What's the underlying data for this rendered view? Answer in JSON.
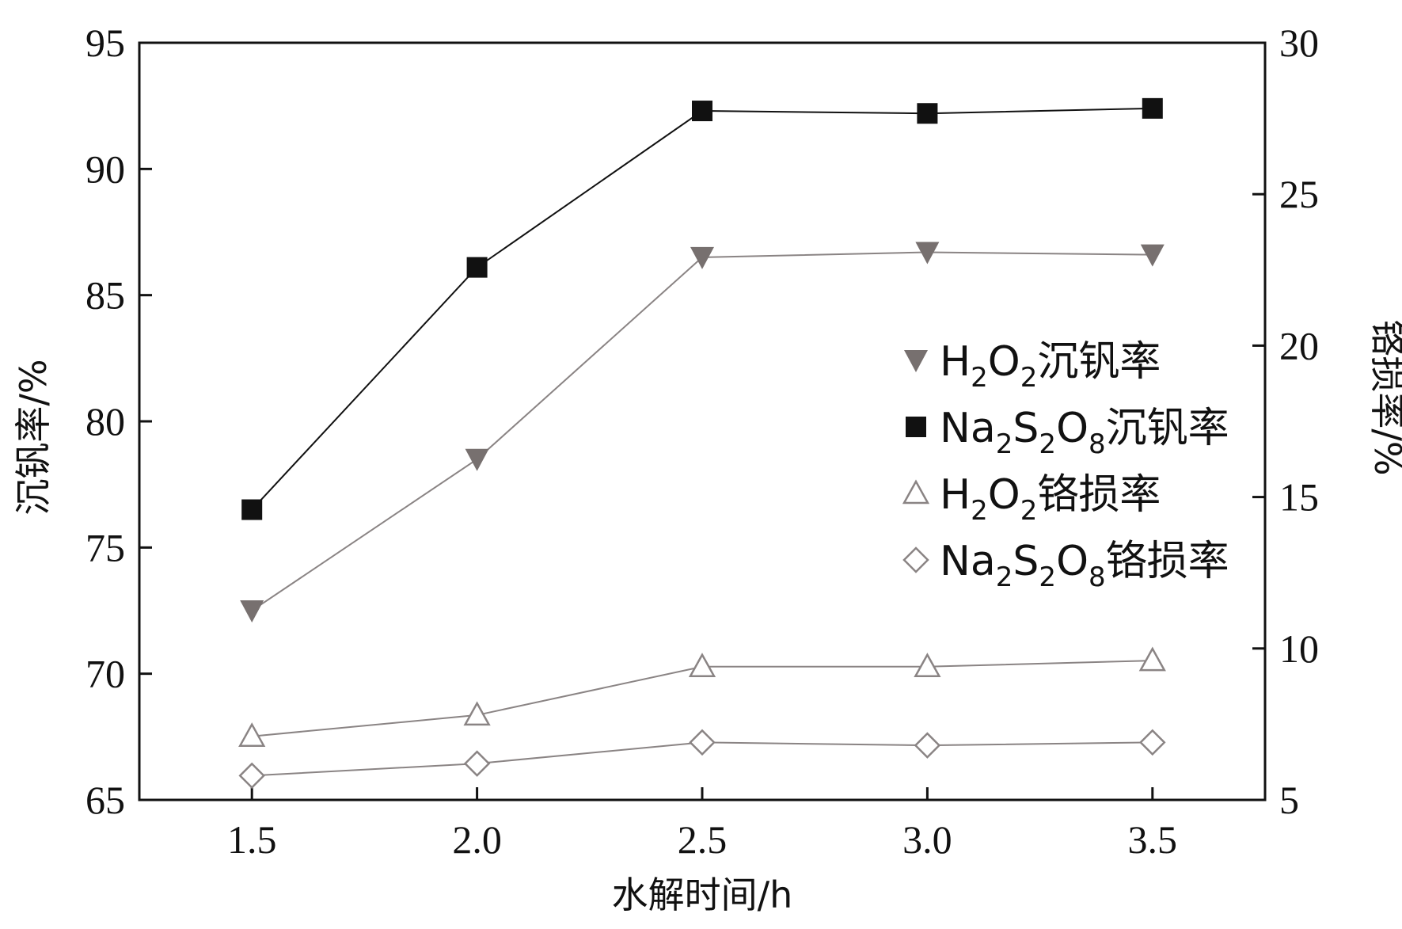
{
  "chart_data": {
    "type": "line",
    "x": [
      1.5,
      2.0,
      2.5,
      3.0,
      3.5
    ],
    "xlabel": "水解时间/h",
    "xlim": [
      1.25,
      3.75
    ],
    "xticks": [
      "1.5",
      "2.0",
      "2.5",
      "3.0",
      "3.5"
    ],
    "ylabel_left": "沉钒率/%",
    "ylim_left": [
      65,
      95
    ],
    "yticks_left": [
      "65",
      "70",
      "75",
      "80",
      "85",
      "90",
      "95"
    ],
    "ylabel_right": "铬损率/%",
    "ylim_right": [
      5,
      30
    ],
    "yticks_right": [
      "5",
      "10",
      "15",
      "20",
      "25",
      "30"
    ],
    "grid": false,
    "legend_position": "center-right",
    "series": [
      {
        "name": "H2O2沉钒率",
        "legend_parts": [
          [
            "H",
            ""
          ],
          [
            "2",
            "sub"
          ],
          [
            "O",
            ""
          ],
          [
            "2",
            "sub"
          ],
          [
            "沉钒率",
            ""
          ]
        ],
        "axis": "left",
        "marker": "triangle-down-filled",
        "color": "#77706f",
        "line_color": "#8a8484",
        "values": [
          72.5,
          78.5,
          86.5,
          86.7,
          86.6
        ]
      },
      {
        "name": "Na2S2O8沉钒率",
        "legend_parts": [
          [
            "Na",
            ""
          ],
          [
            "2",
            "sub"
          ],
          [
            "S",
            ""
          ],
          [
            "2",
            "sub"
          ],
          [
            "O",
            ""
          ],
          [
            "8",
            "sub"
          ],
          [
            "沉钒率",
            ""
          ]
        ],
        "axis": "left",
        "marker": "square-filled",
        "color": "#111111",
        "line_color": "#111111",
        "values": [
          76.5,
          86.1,
          92.3,
          92.2,
          92.4
        ]
      },
      {
        "name": "H2O2铬损率",
        "legend_parts": [
          [
            "H",
            ""
          ],
          [
            "2",
            "sub"
          ],
          [
            "O",
            ""
          ],
          [
            "2",
            "sub"
          ],
          [
            "铬损率",
            ""
          ]
        ],
        "axis": "right",
        "marker": "triangle-up-open",
        "color": "#8a8484",
        "line_color": "#8a8484",
        "values": [
          7.1,
          7.8,
          9.4,
          9.4,
          9.6
        ]
      },
      {
        "name": "Na2S2O8铬损率",
        "legend_parts": [
          [
            "Na",
            ""
          ],
          [
            "2",
            "sub"
          ],
          [
            "S",
            ""
          ],
          [
            "2",
            "sub"
          ],
          [
            "O",
            ""
          ],
          [
            "8",
            "sub"
          ],
          [
            "铬损率",
            ""
          ]
        ],
        "axis": "right",
        "marker": "diamond-open",
        "color": "#8a8484",
        "line_color": "#8a8484",
        "values": [
          5.8,
          6.2,
          6.9,
          6.8,
          6.9
        ]
      }
    ]
  }
}
